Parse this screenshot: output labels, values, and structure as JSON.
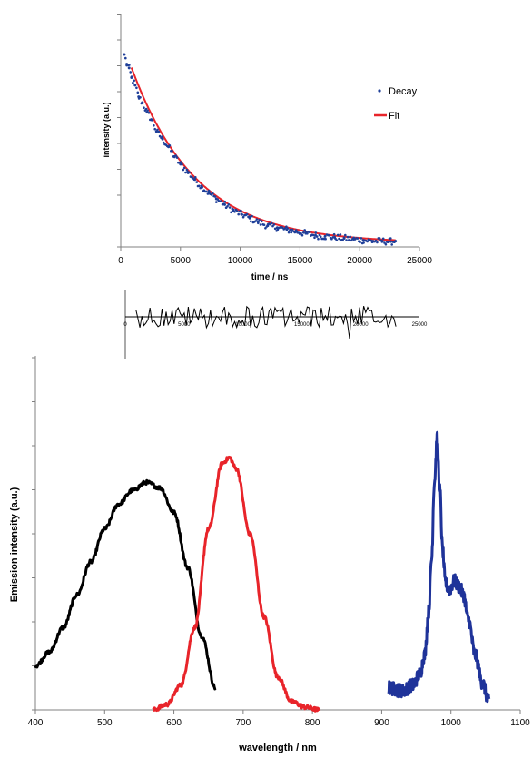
{
  "chart_data": [
    {
      "type": "scatter",
      "xlabel": "time / ns",
      "ylabel": "intensity (a.u.)",
      "xlim": [
        0,
        25000
      ],
      "x_ticks": [
        "0",
        "5000",
        "10000",
        "15000",
        "20000",
        "25000"
      ],
      "ylim": [
        0,
        1
      ],
      "legend_position": "right",
      "series": [
        {
          "name": "Decay",
          "kind": "points",
          "color": "#1f3f99",
          "x": [
            300,
            500,
            700,
            900,
            1200,
            1500,
            1800,
            2200,
            2600,
            3000,
            3500,
            4000,
            4500,
            5000,
            5600,
            6200,
            6800,
            7400,
            8000,
            8700,
            9400,
            10100,
            10800,
            11500,
            12300,
            13100,
            13900,
            14700,
            15500,
            16300,
            17100,
            17900,
            18700,
            19500,
            20300,
            21100,
            21900,
            22600,
            23000
          ],
          "y": [
            1.0,
            0.95,
            0.93,
            0.88,
            0.84,
            0.78,
            0.75,
            0.7,
            0.66,
            0.6,
            0.56,
            0.52,
            0.47,
            0.43,
            0.39,
            0.35,
            0.31,
            0.28,
            0.25,
            0.22,
            0.19,
            0.17,
            0.15,
            0.13,
            0.11,
            0.1,
            0.09,
            0.08,
            0.07,
            0.06,
            0.055,
            0.05,
            0.045,
            0.04,
            0.035,
            0.03,
            0.03,
            0.028,
            0.03
          ]
        },
        {
          "name": "Fit",
          "kind": "line",
          "color": "#e8242a",
          "tau": 5400,
          "amplitude": 0.98,
          "offset": 0.02,
          "x_start": 900,
          "x_end": 23000
        }
      ]
    },
    {
      "type": "line",
      "title": "residuals",
      "x_ticks": [
        "0",
        "5000",
        "10000",
        "15000",
        "20000",
        "25000"
      ],
      "xlim": [
        0,
        25000
      ],
      "ylim": [
        -1,
        1
      ],
      "series": [
        {
          "kind": "line",
          "color": "#000000",
          "x_start": 900,
          "x_end": 23000,
          "points": 130
        }
      ]
    },
    {
      "type": "line",
      "xlabel": "wavelength / nm",
      "ylabel": "Emission intensity (a.u.)",
      "xlim": [
        400,
        1100
      ],
      "x_ticks": [
        "400",
        "500",
        "600",
        "700",
        "800",
        "900",
        "1000",
        "1100"
      ],
      "ylim": [
        0,
        1
      ],
      "series": [
        {
          "color": "#000000",
          "x_start": 400,
          "x_end": 660,
          "x": [
            400,
            420,
            440,
            460,
            480,
            500,
            520,
            540,
            560,
            580,
            600,
            620,
            640,
            660
          ],
          "y": [
            0.16,
            0.21,
            0.3,
            0.42,
            0.54,
            0.66,
            0.75,
            0.8,
            0.83,
            0.81,
            0.72,
            0.52,
            0.27,
            0.08
          ]
        },
        {
          "color": "#e8242a",
          "x_start": 570,
          "x_end": 810,
          "x": [
            570,
            590,
            610,
            630,
            650,
            670,
            680,
            690,
            710,
            730,
            750,
            770,
            790,
            810
          ],
          "y": [
            0.0,
            0.02,
            0.09,
            0.3,
            0.66,
            0.9,
            0.92,
            0.88,
            0.64,
            0.34,
            0.12,
            0.03,
            0.01,
            0.0
          ]
        },
        {
          "color": "#1f3399",
          "x_start": 910,
          "x_end": 1055,
          "x": [
            910,
            930,
            945,
            955,
            962,
            968,
            972,
            976,
            980,
            984,
            988,
            992,
            998,
            1005,
            1012,
            1018,
            1025,
            1035,
            1045,
            1055
          ],
          "y": [
            0.08,
            0.07,
            0.09,
            0.13,
            0.2,
            0.36,
            0.55,
            0.83,
            0.99,
            0.8,
            0.58,
            0.46,
            0.44,
            0.47,
            0.45,
            0.42,
            0.33,
            0.2,
            0.1,
            0.03
          ]
        }
      ]
    }
  ]
}
